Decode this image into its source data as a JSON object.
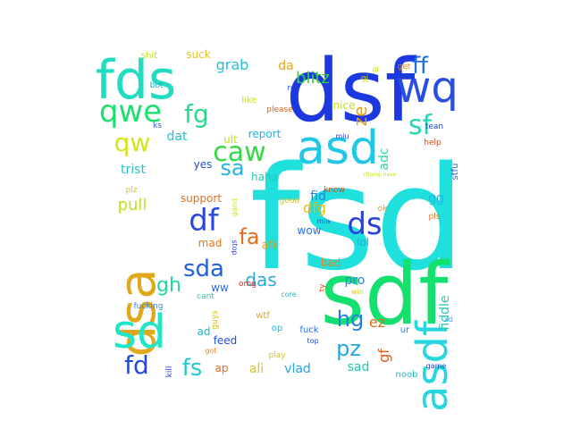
{
  "words": [
    {
      "text": "fsd",
      "color": "#1fe0dc"
    },
    {
      "text": "sdf",
      "color": "#14e070"
    },
    {
      "text": "dsf",
      "color": "#1c39e0"
    },
    {
      "text": "asd",
      "color": "#20c8e6"
    },
    {
      "text": "fds",
      "color": "#20dcc0"
    },
    {
      "text": "wq",
      "color": "#2a4ee0"
    },
    {
      "text": "dsa",
      "color": "#e2a81c"
    },
    {
      "text": "sd",
      "color": "#1ee6c6"
    },
    {
      "text": "asdf",
      "color": "#28d6e0"
    },
    {
      "text": "caw",
      "color": "#34d844"
    },
    {
      "text": "qwe",
      "color": "#1ee070"
    },
    {
      "text": "df",
      "color": "#2a48e0"
    },
    {
      "text": "ds",
      "color": "#2a3fdc"
    },
    {
      "text": "sf",
      "color": "#22d8b0"
    },
    {
      "text": "fg",
      "color": "#28da8c"
    },
    {
      "text": "qw",
      "color": "#d4e41c"
    },
    {
      "text": "ff",
      "color": "#2070e0"
    },
    {
      "text": "sda",
      "color": "#2060e0"
    },
    {
      "text": "fa",
      "color": "#e07020"
    },
    {
      "text": "sa",
      "color": "#22b4e0"
    },
    {
      "text": "fd",
      "color": "#2448dc"
    },
    {
      "text": "fs",
      "color": "#20ccd0"
    },
    {
      "text": "hg",
      "color": "#2080e0"
    },
    {
      "text": "pz",
      "color": "#22a8e0"
    },
    {
      "text": "gh",
      "color": "#22d898"
    },
    {
      "text": "das",
      "color": "#2aa8e0"
    },
    {
      "text": "ze",
      "color": "#e0a018"
    },
    {
      "text": "blitz",
      "color": "#34d444"
    },
    {
      "text": "grab",
      "color": "#28c0d0"
    },
    {
      "text": "dfg",
      "color": "#e4b81c"
    },
    {
      "text": "pull",
      "color": "#c8e01c"
    },
    {
      "text": "trist",
      "color": "#22c8d0"
    },
    {
      "text": "ez",
      "color": "#d07020"
    },
    {
      "text": "gf",
      "color": "#e06018"
    },
    {
      "text": "ali",
      "color": "#e0c41c"
    },
    {
      "text": "vlad",
      "color": "#22a8e0"
    },
    {
      "text": "sad",
      "color": "#1ec8a8"
    },
    {
      "text": "fid",
      "color": "#2680e0"
    },
    {
      "text": "pro",
      "color": "#2a8ae0"
    },
    {
      "text": "fiddle",
      "color": "#24c8b4"
    },
    {
      "text": "da",
      "color": "#e0a81c"
    },
    {
      "text": "gg",
      "color": "#22b4e0"
    },
    {
      "text": "adc",
      "color": "#26d8a0"
    },
    {
      "text": "dat",
      "color": "#22c0d0"
    },
    {
      "text": "report",
      "color": "#22b4e0"
    },
    {
      "text": "nice",
      "color": "#c8e01c"
    },
    {
      "text": "support",
      "color": "#e07020"
    },
    {
      "text": "ww",
      "color": "#2a6ae0"
    },
    {
      "text": "ad",
      "color": "#20b8c8"
    },
    {
      "text": "feed",
      "color": "#2450d8"
    },
    {
      "text": "bad",
      "color": "#e08818"
    },
    {
      "text": "lol",
      "color": "#22b4d8"
    },
    {
      "text": "wow",
      "color": "#2a70e0"
    },
    {
      "text": "mad",
      "color": "#e07a18"
    },
    {
      "text": "afk",
      "color": "#d8a020"
    },
    {
      "text": "haha",
      "color": "#24c8b8"
    },
    {
      "text": "yes",
      "color": "#2450d8"
    },
    {
      "text": "ult",
      "color": "#c8e01c"
    },
    {
      "text": "suck",
      "color": "#e4c41c"
    },
    {
      "text": "shit",
      "color": "#c0e020"
    },
    {
      "text": "bot",
      "color": "#20b0c8"
    },
    {
      "text": "ks",
      "color": "#2460d8"
    },
    {
      "text": "like",
      "color": "#c8e01c"
    },
    {
      "text": "please",
      "color": "#e06018"
    },
    {
      "text": "re",
      "color": "#2a40d8"
    },
    {
      "text": "miu",
      "color": "#2a40d8"
    },
    {
      "text": "get",
      "color": "#e08818"
    },
    {
      "text": "gj",
      "color": "#c8e01c"
    },
    {
      "text": "good",
      "color": "#d8c020"
    },
    {
      "text": "tean",
      "color": "#2040d8"
    },
    {
      "text": "help",
      "color": "#e04018"
    },
    {
      "text": "stfu",
      "color": "#2a60e0"
    },
    {
      "text": "know",
      "color": "#e04018"
    },
    {
      "text": "champ nave",
      "color": "#c8e01c"
    },
    {
      "text": "plz",
      "color": "#d8c020"
    },
    {
      "text": "pls",
      "color": "#e07020"
    },
    {
      "text": "ok",
      "color": "#d8a020"
    },
    {
      "text": "mia",
      "color": "#2a60e0"
    },
    {
      "text": "gand",
      "color": "#c8e01c"
    },
    {
      "text": "omg",
      "color": "#e03018"
    },
    {
      "text": "cant",
      "color": "#2ac8b0"
    },
    {
      "text": "fucking",
      "color": "#2a8ae0"
    },
    {
      "text": "guys",
      "color": "#d8c020"
    },
    {
      "text": "wtf",
      "color": "#e0a818"
    },
    {
      "text": "op",
      "color": "#22b4d0"
    },
    {
      "text": "fuck",
      "color": "#2470d8"
    },
    {
      "text": "top",
      "color": "#2a50e0"
    },
    {
      "text": "win",
      "color": "#d8c020"
    },
    {
      "text": "ty",
      "color": "#e04018"
    },
    {
      "text": "core",
      "color": "#2ab8c8"
    },
    {
      "text": "ur",
      "color": "#2a80e0"
    },
    {
      "text": "xd",
      "color": "#2aa8e0"
    },
    {
      "text": "game",
      "color": "#2040d8"
    },
    {
      "text": "noob",
      "color": "#22b8c0"
    },
    {
      "text": "play",
      "color": "#d8c020"
    },
    {
      "text": "got",
      "color": "#e08818"
    },
    {
      "text": "ap",
      "color": "#e07020"
    },
    {
      "text": "kill",
      "color": "#2040d8"
    },
    {
      "text": "stop",
      "color": "#2a40d8"
    },
    {
      "text": "gl",
      "color": "#c8e01c"
    }
  ]
}
